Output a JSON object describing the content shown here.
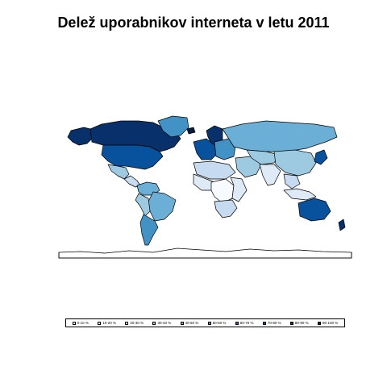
{
  "title": "Delež uporabnikov interneta v letu 2011",
  "colors": {
    "border": "#000000",
    "ocean": "#ffffff",
    "nodata": "#ffffff",
    "antarctica": "#ffffff"
  },
  "legend": {
    "items": [
      {
        "label": "0-10 %",
        "color": "#f7fbff"
      },
      {
        "label": "10-20 %",
        "color": "#deebf7"
      },
      {
        "label": "20-30 %",
        "color": "#c6dbef"
      },
      {
        "label": "30-40 %",
        "color": "#9ecae1"
      },
      {
        "label": "40-50 %",
        "color": "#6baed6"
      },
      {
        "label": "50-60 %",
        "color": "#4292c6"
      },
      {
        "label": "60-70 %",
        "color": "#2171b5"
      },
      {
        "label": "70-80 %",
        "color": "#08519c"
      },
      {
        "label": "80-90 %",
        "color": "#08306b"
      },
      {
        "label": "90-100 %",
        "color": "#041c40"
      }
    ]
  },
  "regions": [
    {
      "name": "alaska",
      "bin": 8
    },
    {
      "name": "canada",
      "bin": 8
    },
    {
      "name": "usa",
      "bin": 7
    },
    {
      "name": "greenland",
      "bin": 5
    },
    {
      "name": "mexico",
      "bin": 3
    },
    {
      "name": "central-america",
      "bin": 2
    },
    {
      "name": "colombia-venezuela",
      "bin": 4
    },
    {
      "name": "brazil",
      "bin": 4
    },
    {
      "name": "peru-bolivia",
      "bin": 3
    },
    {
      "name": "argentina-chile",
      "bin": 5
    },
    {
      "name": "iceland",
      "bin": 9
    },
    {
      "name": "scandinavia",
      "bin": 8
    },
    {
      "name": "western-europe",
      "bin": 7
    },
    {
      "name": "eastern-europe",
      "bin": 5
    },
    {
      "name": "russia",
      "bin": 4
    },
    {
      "name": "north-africa",
      "bin": 2
    },
    {
      "name": "west-africa",
      "bin": 1
    },
    {
      "name": "central-africa",
      "bin": 0
    },
    {
      "name": "east-africa",
      "bin": 1
    },
    {
      "name": "southern-africa",
      "bin": 2
    },
    {
      "name": "middle-east",
      "bin": 3
    },
    {
      "name": "central-asia",
      "bin": 3
    },
    {
      "name": "china",
      "bin": 3
    },
    {
      "name": "india",
      "bin": 1
    },
    {
      "name": "southeast-asia",
      "bin": 2
    },
    {
      "name": "japan-korea",
      "bin": 7
    },
    {
      "name": "indonesia",
      "bin": 1
    },
    {
      "name": "australia",
      "bin": 7
    },
    {
      "name": "new-zealand",
      "bin": 8
    }
  ]
}
